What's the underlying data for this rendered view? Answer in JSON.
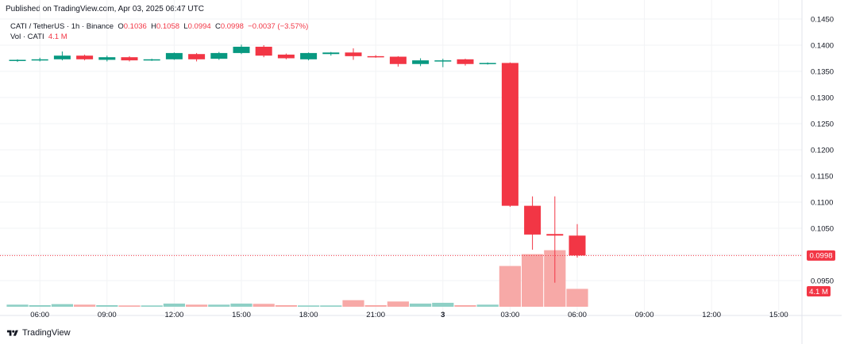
{
  "header": {
    "published": "Published on TradingView.com, Apr 03, 2025 06:47 UTC"
  },
  "legend": {
    "symbol": "CATI / TetherUS · 1h · Binance",
    "o_label": "O",
    "o_value": "0.1036",
    "h_label": "H",
    "h_value": "0.1058",
    "l_label": "L",
    "l_value": "0.0994",
    "c_label": "C",
    "c_value": "0.0998",
    "change": "−0.0037 (−3.57%)",
    "vol_label": "Vol · CATI",
    "vol_value": "4.1 M"
  },
  "footer": {
    "brand": "TradingView"
  },
  "colors": {
    "up": "#089981",
    "down": "#f23645",
    "vol_up": "#8fd0c6",
    "vol_down": "#f7a9a7",
    "axis_text": "#131722",
    "grid": "#f2f3f5"
  },
  "chart_data": {
    "type": "candlestick",
    "symbol": "CATI / TetherUS",
    "interval": "1h",
    "exchange": "Binance",
    "x_ticks": [
      "06:00",
      "09:00",
      "12:00",
      "15:00",
      "18:00",
      "21:00",
      "3",
      "03:00",
      "06:00",
      "09:00",
      "12:00",
      "15:00"
    ],
    "y_ticks": [
      "0.1450",
      "0.1400",
      "0.1350",
      "0.1300",
      "0.1250",
      "0.1200",
      "0.1150",
      "0.1100",
      "0.1050",
      "0.1000",
      "0.0950"
    ],
    "ylim": [
      0.092,
      0.146
    ],
    "last_price": "0.0998",
    "last_volume": "4.1 M",
    "candles": [
      {
        "o": 0.137,
        "h": 0.1373,
        "l": 0.1368,
        "c": 0.1372
      },
      {
        "o": 0.1371,
        "h": 0.1376,
        "l": 0.1369,
        "c": 0.1373
      },
      {
        "o": 0.1373,
        "h": 0.1388,
        "l": 0.1371,
        "c": 0.138
      },
      {
        "o": 0.138,
        "h": 0.1382,
        "l": 0.1371,
        "c": 0.1373
      },
      {
        "o": 0.1372,
        "h": 0.138,
        "l": 0.1369,
        "c": 0.1377
      },
      {
        "o": 0.1377,
        "h": 0.1379,
        "l": 0.1369,
        "c": 0.1371
      },
      {
        "o": 0.1372,
        "h": 0.1374,
        "l": 0.137,
        "c": 0.1373
      },
      {
        "o": 0.1373,
        "h": 0.1386,
        "l": 0.1372,
        "c": 0.1385
      },
      {
        "o": 0.1383,
        "h": 0.1385,
        "l": 0.1369,
        "c": 0.1373
      },
      {
        "o": 0.1374,
        "h": 0.1387,
        "l": 0.1372,
        "c": 0.1385
      },
      {
        "o": 0.1385,
        "h": 0.1401,
        "l": 0.1383,
        "c": 0.1397
      },
      {
        "o": 0.1397,
        "h": 0.14,
        "l": 0.1377,
        "c": 0.138
      },
      {
        "o": 0.1382,
        "h": 0.1384,
        "l": 0.1373,
        "c": 0.1375
      },
      {
        "o": 0.1373,
        "h": 0.1386,
        "l": 0.1371,
        "c": 0.1385
      },
      {
        "o": 0.1383,
        "h": 0.1387,
        "l": 0.138,
        "c": 0.1386
      },
      {
        "o": 0.1386,
        "h": 0.1394,
        "l": 0.1372,
        "c": 0.1379
      },
      {
        "o": 0.1379,
        "h": 0.1381,
        "l": 0.1376,
        "c": 0.1378
      },
      {
        "o": 0.1378,
        "h": 0.1379,
        "l": 0.1359,
        "c": 0.1364
      },
      {
        "o": 0.1364,
        "h": 0.1375,
        "l": 0.136,
        "c": 0.1371
      },
      {
        "o": 0.137,
        "h": 0.1374,
        "l": 0.1358,
        "c": 0.1371
      },
      {
        "o": 0.1373,
        "h": 0.1374,
        "l": 0.1361,
        "c": 0.1364
      },
      {
        "o": 0.1364,
        "h": 0.1367,
        "l": 0.1363,
        "c": 0.1366
      },
      {
        "o": 0.1366,
        "h": 0.1367,
        "l": 0.1091,
        "c": 0.1093
      },
      {
        "o": 0.1093,
        "h": 0.1111,
        "l": 0.1009,
        "c": 0.1038
      },
      {
        "o": 0.1039,
        "h": 0.1111,
        "l": 0.0946,
        "c": 0.1036
      },
      {
        "o": 0.1036,
        "h": 0.1058,
        "l": 0.0994,
        "c": 0.0998
      }
    ],
    "volume": [
      0.08,
      0.06,
      0.1,
      0.08,
      0.06,
      0.05,
      0.05,
      0.12,
      0.08,
      0.08,
      0.12,
      0.11,
      0.06,
      0.05,
      0.05,
      0.25,
      0.06,
      0.2,
      0.12,
      0.15,
      0.06,
      0.08,
      1.55,
      2.0,
      2.15,
      0.68
    ],
    "volume_max": 2.2
  }
}
